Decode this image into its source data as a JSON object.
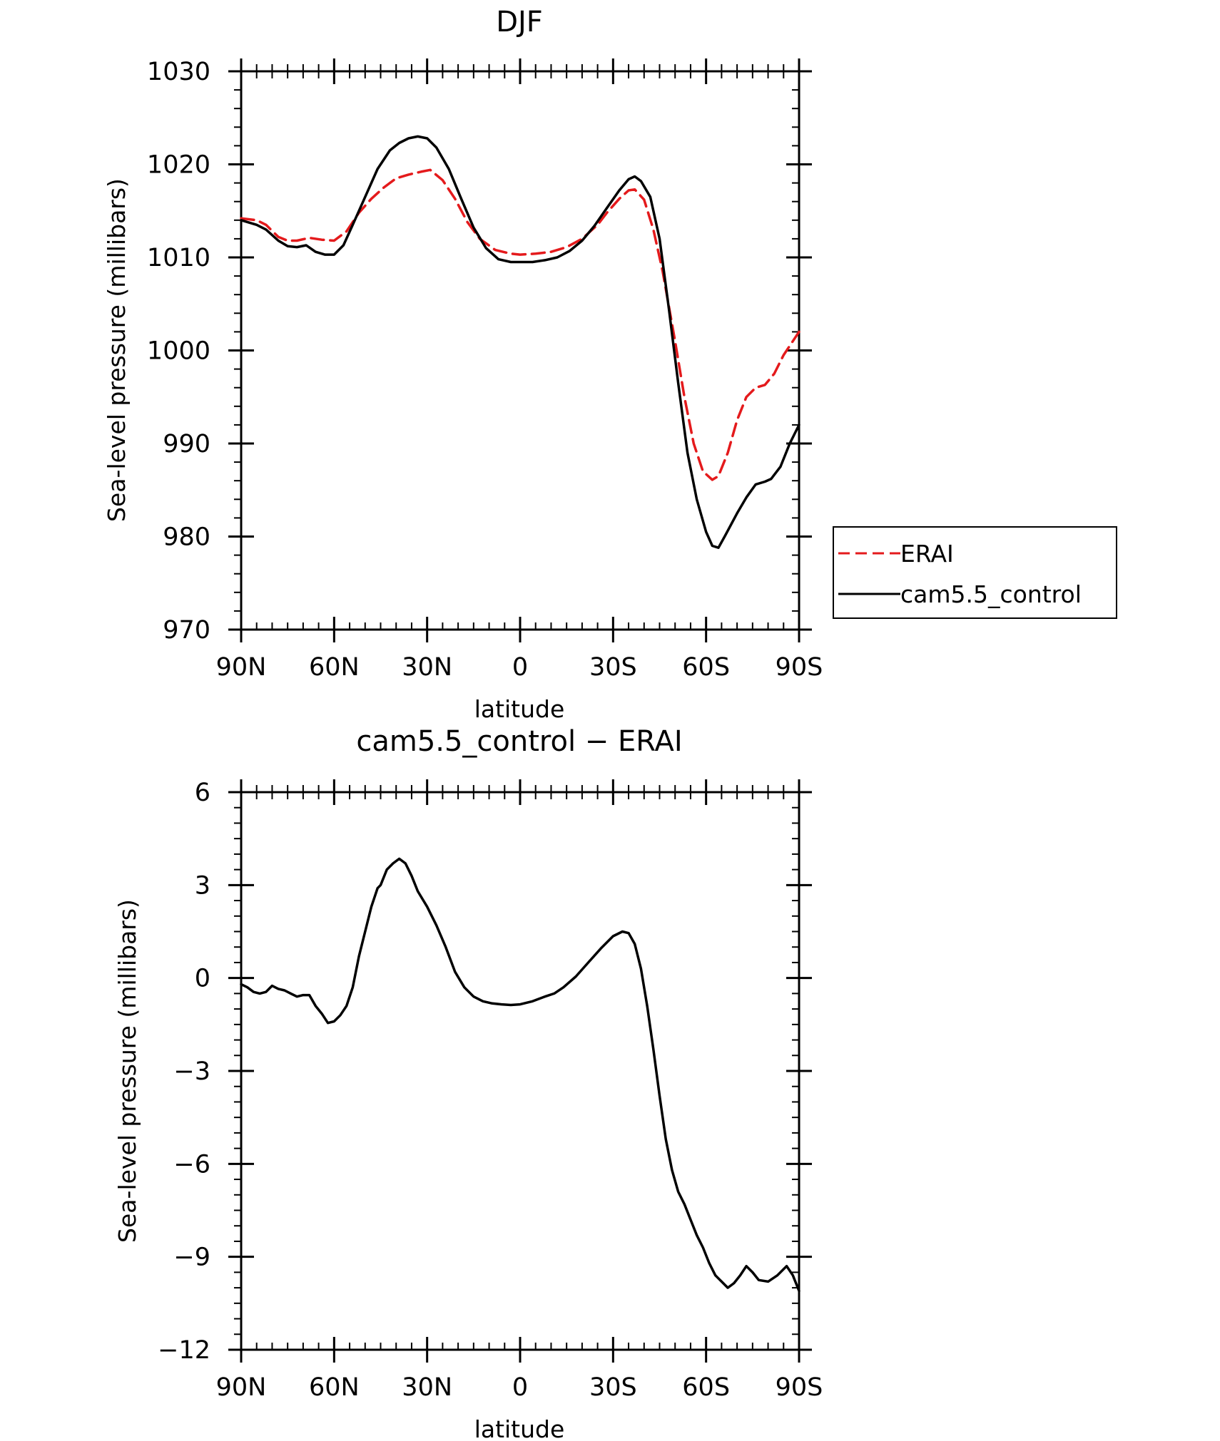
{
  "chart_data": [
    {
      "type": "line",
      "title": "DJF",
      "xlabel": "latitude",
      "ylabel": "Sea-level pressure (millibars)",
      "xlim": [
        90,
        -90
      ],
      "ylim": [
        970,
        1030
      ],
      "xticks": [
        {
          "value": 90,
          "label": "90N"
        },
        {
          "value": 60,
          "label": "60N"
        },
        {
          "value": 30,
          "label": "30N"
        },
        {
          "value": 0,
          "label": "0"
        },
        {
          "value": -30,
          "label": "30S"
        },
        {
          "value": -60,
          "label": "60S"
        },
        {
          "value": -90,
          "label": "90S"
        }
      ],
      "yticks": [
        {
          "value": 970,
          "label": "970"
        },
        {
          "value": 980,
          "label": "980"
        },
        {
          "value": 990,
          "label": "990"
        },
        {
          "value": 1000,
          "label": "1000"
        },
        {
          "value": 1010,
          "label": "1010"
        },
        {
          "value": 1020,
          "label": "1020"
        },
        {
          "value": 1030,
          "label": "1030"
        }
      ],
      "legend": {
        "placement": "right"
      },
      "series": [
        {
          "name": "ERAI",
          "color": "#e41a1c",
          "dash": "dashed",
          "points": [
            [
              90,
              1014.2
            ],
            [
              85,
              1014.0
            ],
            [
              82,
              1013.5
            ],
            [
              78,
              1012.2
            ],
            [
              75,
              1011.8
            ],
            [
              72,
              1011.8
            ],
            [
              68,
              1012.1
            ],
            [
              64,
              1011.9
            ],
            [
              60,
              1011.8
            ],
            [
              56,
              1012.8
            ],
            [
              52,
              1014.8
            ],
            [
              48,
              1016.3
            ],
            [
              44,
              1017.5
            ],
            [
              40,
              1018.5
            ],
            [
              36,
              1018.9
            ],
            [
              32,
              1019.2
            ],
            [
              29,
              1019.4
            ],
            [
              25,
              1018.3
            ],
            [
              21,
              1016.3
            ],
            [
              17,
              1013.8
            ],
            [
              13,
              1012.0
            ],
            [
              8,
              1010.8
            ],
            [
              3,
              1010.4
            ],
            [
              0,
              1010.3
            ],
            [
              -5,
              1010.4
            ],
            [
              -10,
              1010.6
            ],
            [
              -15,
              1011.1
            ],
            [
              -20,
              1012.0
            ],
            [
              -25,
              1013.5
            ],
            [
              -28,
              1014.8
            ],
            [
              -32,
              1016.3
            ],
            [
              -35,
              1017.2
            ],
            [
              -37,
              1017.3
            ],
            [
              -40,
              1016.2
            ],
            [
              -43,
              1013.0
            ],
            [
              -46,
              1008.5
            ],
            [
              -50,
              1001.0
            ],
            [
              -53,
              995.0
            ],
            [
              -56,
              990.0
            ],
            [
              -59,
              987.0
            ],
            [
              -62,
              986.1
            ],
            [
              -64,
              986.5
            ],
            [
              -67,
              989.0
            ],
            [
              -70,
              992.5
            ],
            [
              -73,
              995.0
            ],
            [
              -76,
              996.0
            ],
            [
              -79,
              996.3
            ],
            [
              -82,
              997.5
            ],
            [
              -85,
              999.5
            ],
            [
              -90,
              1002.0
            ]
          ]
        },
        {
          "name": "cam5.5_control",
          "color": "#000000",
          "dash": "solid",
          "points": [
            [
              90,
              1014.0
            ],
            [
              85,
              1013.5
            ],
            [
              82,
              1013.0
            ],
            [
              78,
              1011.8
            ],
            [
              75,
              1011.2
            ],
            [
              72,
              1011.1
            ],
            [
              69,
              1011.3
            ],
            [
              66,
              1010.6
            ],
            [
              63,
              1010.3
            ],
            [
              60,
              1010.3
            ],
            [
              57,
              1011.3
            ],
            [
              54,
              1013.5
            ],
            [
              50,
              1016.5
            ],
            [
              46,
              1019.5
            ],
            [
              42,
              1021.5
            ],
            [
              39,
              1022.3
            ],
            [
              36,
              1022.8
            ],
            [
              33,
              1023.0
            ],
            [
              30,
              1022.8
            ],
            [
              27,
              1021.8
            ],
            [
              23,
              1019.5
            ],
            [
              19,
              1016.3
            ],
            [
              15,
              1013.2
            ],
            [
              11,
              1011.0
            ],
            [
              7,
              1009.8
            ],
            [
              3,
              1009.5
            ],
            [
              0,
              1009.5
            ],
            [
              -4,
              1009.5
            ],
            [
              -8,
              1009.7
            ],
            [
              -12,
              1010.0
            ],
            [
              -16,
              1010.7
            ],
            [
              -20,
              1011.8
            ],
            [
              -24,
              1013.4
            ],
            [
              -28,
              1015.3
            ],
            [
              -32,
              1017.2
            ],
            [
              -35,
              1018.4
            ],
            [
              -37,
              1018.7
            ],
            [
              -39,
              1018.2
            ],
            [
              -42,
              1016.5
            ],
            [
              -45,
              1012.0
            ],
            [
              -48,
              1004.5
            ],
            [
              -51,
              996.5
            ],
            [
              -54,
              989.0
            ],
            [
              -57,
              984.0
            ],
            [
              -60,
              980.5
            ],
            [
              -62,
              979.0
            ],
            [
              -64,
              978.8
            ],
            [
              -66,
              980.0
            ],
            [
              -70,
              982.5
            ],
            [
              -73,
              984.2
            ],
            [
              -76,
              985.6
            ],
            [
              -79,
              985.9
            ],
            [
              -81,
              986.2
            ],
            [
              -84,
              987.5
            ],
            [
              -87,
              990.0
            ],
            [
              -90,
              992.0
            ]
          ]
        }
      ]
    },
    {
      "type": "line",
      "title": "cam5.5_control − ERAI",
      "xlabel": "latitude",
      "ylabel": "Sea-level pressure (millibars)",
      "xlim": [
        90,
        -90
      ],
      "ylim": [
        -12,
        6
      ],
      "xticks": [
        {
          "value": 90,
          "label": "90N"
        },
        {
          "value": 60,
          "label": "60N"
        },
        {
          "value": 30,
          "label": "30N"
        },
        {
          "value": 0,
          "label": "0"
        },
        {
          "value": -30,
          "label": "30S"
        },
        {
          "value": -60,
          "label": "60S"
        },
        {
          "value": -90,
          "label": "90S"
        }
      ],
      "yticks": [
        {
          "value": -12,
          "label": "−12"
        },
        {
          "value": -9,
          "label": "−9"
        },
        {
          "value": -6,
          "label": "−6"
        },
        {
          "value": -3,
          "label": "−3"
        },
        {
          "value": 0,
          "label": "0"
        },
        {
          "value": 3,
          "label": "3"
        },
        {
          "value": 6,
          "label": "6"
        }
      ],
      "series": [
        {
          "color": "#000000",
          "dash": "solid",
          "points": [
            [
              90,
              -0.2
            ],
            [
              88,
              -0.3
            ],
            [
              86,
              -0.45
            ],
            [
              84,
              -0.5
            ],
            [
              82,
              -0.45
            ],
            [
              80,
              -0.25
            ],
            [
              78,
              -0.35
            ],
            [
              76,
              -0.4
            ],
            [
              74,
              -0.5
            ],
            [
              72,
              -0.6
            ],
            [
              70,
              -0.55
            ],
            [
              68,
              -0.55
            ],
            [
              66,
              -0.9
            ],
            [
              64,
              -1.15
            ],
            [
              62,
              -1.45
            ],
            [
              60,
              -1.4
            ],
            [
              58,
              -1.2
            ],
            [
              56,
              -0.9
            ],
            [
              54,
              -0.3
            ],
            [
              52,
              0.7
            ],
            [
              50,
              1.5
            ],
            [
              48,
              2.3
            ],
            [
              46,
              2.9
            ],
            [
              45,
              3.0
            ],
            [
              43,
              3.5
            ],
            [
              41,
              3.7
            ],
            [
              39,
              3.85
            ],
            [
              37,
              3.7
            ],
            [
              35,
              3.3
            ],
            [
              33,
              2.8
            ],
            [
              30,
              2.3
            ],
            [
              27,
              1.7
            ],
            [
              24,
              1.0
            ],
            [
              21,
              0.2
            ],
            [
              18,
              -0.3
            ],
            [
              15,
              -0.6
            ],
            [
              12,
              -0.75
            ],
            [
              9,
              -0.82
            ],
            [
              6,
              -0.85
            ],
            [
              3,
              -0.87
            ],
            [
              0,
              -0.85
            ],
            [
              -4,
              -0.75
            ],
            [
              -8,
              -0.6
            ],
            [
              -11,
              -0.5
            ],
            [
              -14,
              -0.3
            ],
            [
              -18,
              0.05
            ],
            [
              -22,
              0.5
            ],
            [
              -26,
              0.95
            ],
            [
              -30,
              1.35
            ],
            [
              -33,
              1.5
            ],
            [
              -35,
              1.45
            ],
            [
              -37,
              1.1
            ],
            [
              -39,
              0.3
            ],
            [
              -41,
              -0.9
            ],
            [
              -43,
              -2.3
            ],
            [
              -45,
              -3.8
            ],
            [
              -47,
              -5.2
            ],
            [
              -49,
              -6.2
            ],
            [
              -51,
              -6.9
            ],
            [
              -53,
              -7.3
            ],
            [
              -55,
              -7.8
            ],
            [
              -57,
              -8.3
            ],
            [
              -59,
              -8.7
            ],
            [
              -61,
              -9.2
            ],
            [
              -63,
              -9.6
            ],
            [
              -65,
              -9.8
            ],
            [
              -67,
              -10.0
            ],
            [
              -69,
              -9.85
            ],
            [
              -71,
              -9.6
            ],
            [
              -73,
              -9.3
            ],
            [
              -75,
              -9.5
            ],
            [
              -77,
              -9.75
            ],
            [
              -80,
              -9.8
            ],
            [
              -83,
              -9.6
            ],
            [
              -86,
              -9.3
            ],
            [
              -88,
              -9.6
            ],
            [
              -90,
              -10.1
            ]
          ]
        }
      ]
    }
  ]
}
